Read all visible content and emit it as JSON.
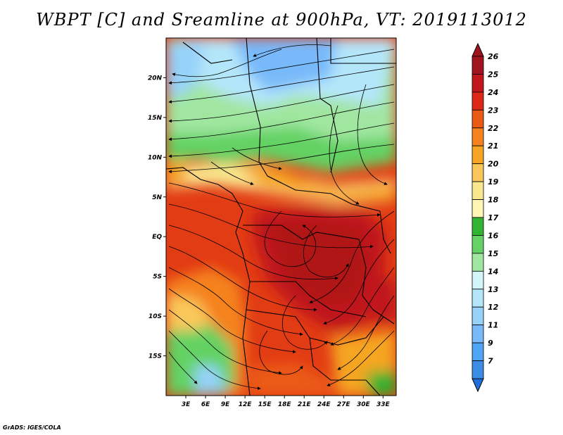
{
  "title": "WBPT [C] and Sreamline at 900hPa, VT: 2019113012",
  "credit": "GrADS: IGES/COLA",
  "map": {
    "lat_range": [
      -20,
      25
    ],
    "lon_range": [
      0,
      35
    ],
    "lat_ticks": [
      {
        "value": 20,
        "label": "20N"
      },
      {
        "value": 15,
        "label": "15N"
      },
      {
        "value": 10,
        "label": "10N"
      },
      {
        "value": 5,
        "label": "5N"
      },
      {
        "value": 0,
        "label": "EQ"
      },
      {
        "value": -5,
        "label": "5S"
      },
      {
        "value": -10,
        "label": "10S"
      },
      {
        "value": -15,
        "label": "15S"
      }
    ],
    "lon_ticks": [
      {
        "value": 3,
        "label": "3E"
      },
      {
        "value": 6,
        "label": "6E"
      },
      {
        "value": 9,
        "label": "9E"
      },
      {
        "value": 12,
        "label": "12E"
      },
      {
        "value": 15,
        "label": "15E"
      },
      {
        "value": 18,
        "label": "18E"
      },
      {
        "value": 21,
        "label": "21E"
      },
      {
        "value": 24,
        "label": "24E"
      },
      {
        "value": 27,
        "label": "27E"
      },
      {
        "value": 30,
        "label": "30E"
      },
      {
        "value": 33,
        "label": "33E"
      }
    ]
  },
  "colorbar": {
    "units": "C",
    "levels": [
      {
        "label": "26",
        "color": "#a0141e"
      },
      {
        "label": "25",
        "color": "#c0161c"
      },
      {
        "label": "24",
        "color": "#dc2814"
      },
      {
        "label": "23",
        "color": "#eb5a14"
      },
      {
        "label": "22",
        "color": "#f5821e"
      },
      {
        "label": "21",
        "color": "#f5a523"
      },
      {
        "label": "20",
        "color": "#fac85a"
      },
      {
        "label": "19",
        "color": "#fae68c"
      },
      {
        "label": "18",
        "color": "#fff5b4"
      },
      {
        "label": "17",
        "color": "#32b432"
      },
      {
        "label": "16",
        "color": "#64d264"
      },
      {
        "label": "15",
        "color": "#a0e6a0"
      },
      {
        "label": "14",
        "color": "#d2f5fa"
      },
      {
        "label": "13",
        "color": "#b4e6fa"
      },
      {
        "label": "12",
        "color": "#96d2fa"
      },
      {
        "label": "11",
        "color": "#78b9fa"
      },
      {
        "label": "9",
        "color": "#50a5f5"
      },
      {
        "label": "7",
        "color": "#3c8ce6"
      }
    ],
    "top_arrow_color": "#a0141e",
    "bottom_arrow_color": "#1e6edc"
  }
}
